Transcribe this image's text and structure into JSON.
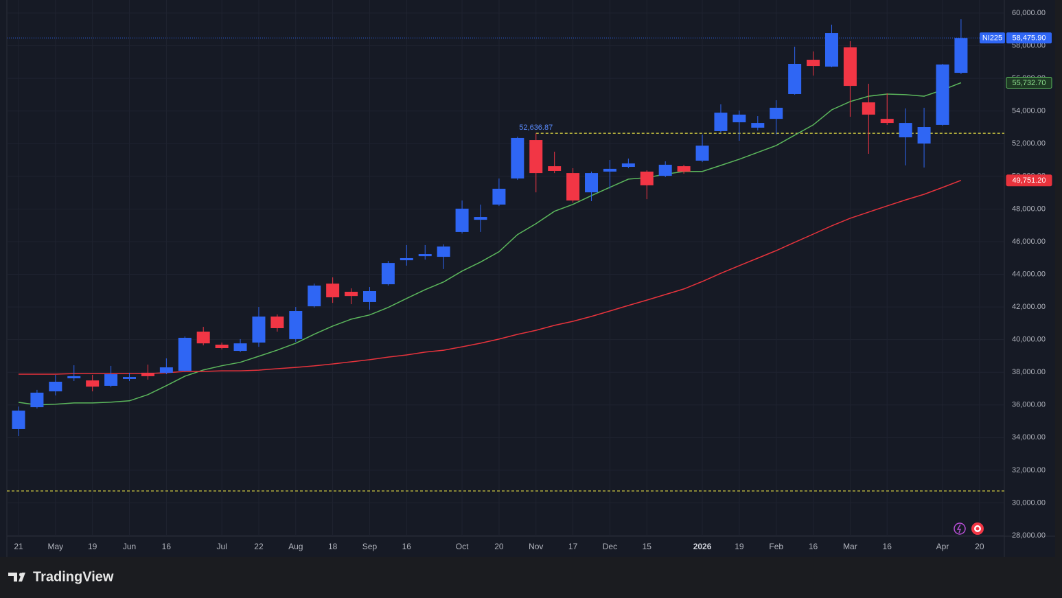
{
  "chart_data": {
    "type": "candlestick",
    "symbol": "NI225",
    "categories": [
      "21",
      null,
      "May",
      null,
      "19",
      null,
      "Jun",
      null,
      "16",
      null,
      null,
      "Jul",
      null,
      "22",
      null,
      "Aug",
      null,
      "18",
      null,
      "Sep",
      null,
      "16",
      null,
      null,
      "Oct",
      null,
      "20",
      null,
      "Nov",
      null,
      "17",
      null,
      "Dec",
      null,
      "15",
      null,
      null,
      "2026",
      null,
      "19",
      null,
      "Feb",
      null,
      "16",
      null,
      "Mar",
      null,
      "16",
      null,
      null,
      "Apr",
      null,
      "20"
    ],
    "open": [
      34520,
      35860,
      36830,
      37630,
      37500,
      37170,
      37590,
      37970,
      37970,
      38090,
      40490,
      39690,
      39310,
      39820,
      41410,
      40030,
      42040,
      43430,
      42930,
      42300,
      43390,
      44860,
      45110,
      45070,
      46590,
      47340,
      48270,
      49870,
      52220,
      50620,
      50200,
      49020,
      50290,
      50580,
      50290,
      50030,
      50620,
      50960,
      52770,
      53310,
      52980,
      53520,
      55040,
      57140,
      56720,
      57900,
      54530,
      53520,
      52390,
      52010,
      53150,
      56340,
      null
    ],
    "high": [
      35900,
      36920,
      37840,
      38430,
      37840,
      38390,
      37970,
      38470,
      38850,
      40190,
      40780,
      39820,
      40030,
      42000,
      41540,
      42000,
      43430,
      43810,
      43140,
      43220,
      44820,
      45790,
      45790,
      45830,
      48520,
      48270,
      49870,
      52430,
      52636.87,
      51510,
      50500,
      50290,
      51000,
      51090,
      50370,
      50920,
      50710,
      52560,
      54410,
      54030,
      53690,
      54660,
      57940,
      57650,
      59290,
      58280,
      55670,
      55080,
      54160,
      54200,
      56890,
      59620,
      null
    ],
    "low": [
      34100,
      35780,
      36580,
      37460,
      36830,
      37080,
      37460,
      37550,
      37880,
      38050,
      39650,
      39400,
      39230,
      39560,
      40490,
      39860,
      41960,
      42250,
      42170,
      41830,
      43310,
      44530,
      44900,
      44320,
      46500,
      46590,
      48180,
      49780,
      49020,
      50200,
      48390,
      48480,
      49240,
      50500,
      48600,
      49950,
      50160,
      50870,
      52680,
      52180,
      52810,
      52560,
      55000,
      56170,
      56680,
      53650,
      51380,
      53150,
      50670,
      50540,
      53100,
      56260,
      null
    ],
    "close": [
      35650,
      36750,
      37420,
      37760,
      37120,
      37880,
      37710,
      37760,
      38300,
      40110,
      39770,
      39480,
      39770,
      41410,
      40700,
      41750,
      43310,
      42590,
      42670,
      42970,
      44690,
      44990,
      45240,
      45700,
      48020,
      47510,
      49240,
      52350,
      50200,
      50330,
      48520,
      50200,
      50460,
      50790,
      49450,
      50710,
      50290,
      51880,
      53900,
      53780,
      53270,
      54200,
      56890,
      56760,
      58780,
      55540,
      53780,
      53270,
      53270,
      53020,
      56850,
      58475.9,
      null
    ],
    "up_color": "#2f66f4",
    "down_color": "#f23645",
    "last_price": {
      "value": 58475.9,
      "label": "58,475.90"
    },
    "moving_averages": [
      {
        "color": "#5cb85c",
        "values": [
          36160,
          36000,
          36040,
          36120,
          36120,
          36170,
          36250,
          36630,
          37180,
          37760,
          38140,
          38400,
          38610,
          38980,
          39360,
          39780,
          40330,
          40830,
          41250,
          41510,
          41970,
          42520,
          43060,
          43530,
          44200,
          44750,
          45380,
          46430,
          47100,
          47860,
          48280,
          48820,
          49330,
          49830,
          49920,
          50130,
          50300,
          50300,
          50670,
          51050,
          51470,
          51890,
          52520,
          53150,
          54070,
          54580,
          54910,
          55040,
          55000,
          54910,
          55290,
          55732.7,
          null
        ],
        "last": {
          "value": 55732.7,
          "label": "55,732.70"
        }
      },
      {
        "color": "#e8333c",
        "values": [
          37880,
          37880,
          37880,
          37920,
          37920,
          37920,
          37920,
          37920,
          37970,
          38050,
          38050,
          38090,
          38090,
          38130,
          38220,
          38300,
          38390,
          38510,
          38640,
          38770,
          38930,
          39060,
          39230,
          39350,
          39560,
          39780,
          40030,
          40320,
          40570,
          40870,
          41120,
          41420,
          41750,
          42090,
          42420,
          42760,
          43100,
          43560,
          44060,
          44530,
          44990,
          45450,
          45960,
          46460,
          46970,
          47430,
          47810,
          48190,
          48560,
          48900,
          49320,
          49751.2,
          null
        ],
        "last": {
          "value": 49751.2,
          "label": "49,751.20"
        }
      }
    ],
    "annotation": {
      "value": 52636.87,
      "label": "52,636.87"
    },
    "horizontal_lines": [
      {
        "value": 52636.87,
        "color": "#e6df45"
      },
      {
        "value": 30730,
        "color": "#e6df45"
      }
    ],
    "ylim": [
      28000,
      60800
    ],
    "yticks": [
      {
        "value": 60000,
        "label": "60,000.00"
      },
      {
        "value": 58000,
        "label": "58,000.00"
      },
      {
        "value": 56000,
        "label": "56,000.00"
      },
      {
        "value": 54000,
        "label": "54,000.00"
      },
      {
        "value": 52000,
        "label": "52,000.00"
      },
      {
        "value": 50000,
        "label": "50,000.00"
      },
      {
        "value": 48000,
        "label": "48,000.00"
      },
      {
        "value": 46000,
        "label": "46,000.00"
      },
      {
        "value": 44000,
        "label": "44,000.00"
      },
      {
        "value": 42000,
        "label": "42,000.00"
      },
      {
        "value": 40000,
        "label": "40,000.00"
      },
      {
        "value": 38000,
        "label": "38,000.00"
      },
      {
        "value": 36000,
        "label": "36,000.00"
      },
      {
        "value": 34000,
        "label": "34,000.00"
      },
      {
        "value": 32000,
        "label": "32,000.00"
      },
      {
        "value": 30000,
        "label": "30,000.00"
      },
      {
        "value": 28000,
        "label": "28,000.00"
      }
    ],
    "grid": true
  },
  "branding": "TradingView"
}
